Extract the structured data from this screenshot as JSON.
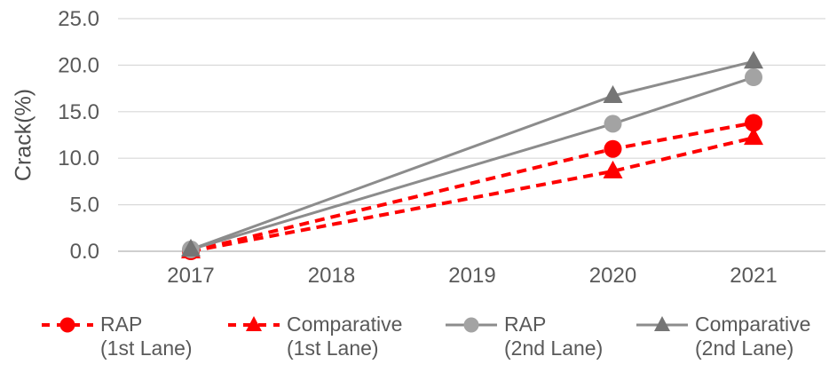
{
  "chart_data": {
    "type": "line",
    "title": "",
    "ylabel": "Crack(%)",
    "xlabel": "",
    "ylim": [
      0,
      25
    ],
    "ytick_values": [
      0,
      5,
      10,
      15,
      20,
      25
    ],
    "ytick_labels": [
      "0.0",
      "5.0",
      "10.0",
      "15.0",
      "20.0",
      "25.0"
    ],
    "x_axis_ticks": [
      2017,
      2018,
      2019,
      2020,
      2021
    ],
    "grid": true,
    "legend_position": "bottom",
    "x": [
      2017,
      2020,
      2021
    ],
    "series": [
      {
        "name": "RAP",
        "lane": "(1st Lane)",
        "values": [
          0.0,
          11.0,
          13.8
        ],
        "line_color": "#fe0000",
        "marker_color": "#fe0000",
        "line_style": "dashed",
        "marker": "circle"
      },
      {
        "name": "Comparative",
        "lane": "(1st Lane)",
        "values": [
          0.0,
          8.6,
          12.2
        ],
        "line_color": "#fe0000",
        "marker_color": "#fe0000",
        "line_style": "dashed",
        "marker": "triangle"
      },
      {
        "name": "RAP",
        "lane": "(2nd Lane)",
        "values": [
          0.2,
          13.7,
          18.7
        ],
        "line_color": "#8c8c8c",
        "marker_color": "#a3a3a3",
        "line_style": "solid",
        "marker": "circle"
      },
      {
        "name": "Comparative",
        "lane": "(2nd Lane)",
        "values": [
          0.2,
          16.7,
          20.4
        ],
        "line_color": "#8c8c8c",
        "marker_color": "#757575",
        "line_style": "solid",
        "marker": "triangle"
      }
    ]
  },
  "colors": {
    "grid": "#d9d9d9",
    "axis_line": "#bfbfbf",
    "tick_label": "#595959",
    "axis_title": "#4d4d4d",
    "legend_text": "#595959",
    "background": "#ffffff"
  }
}
